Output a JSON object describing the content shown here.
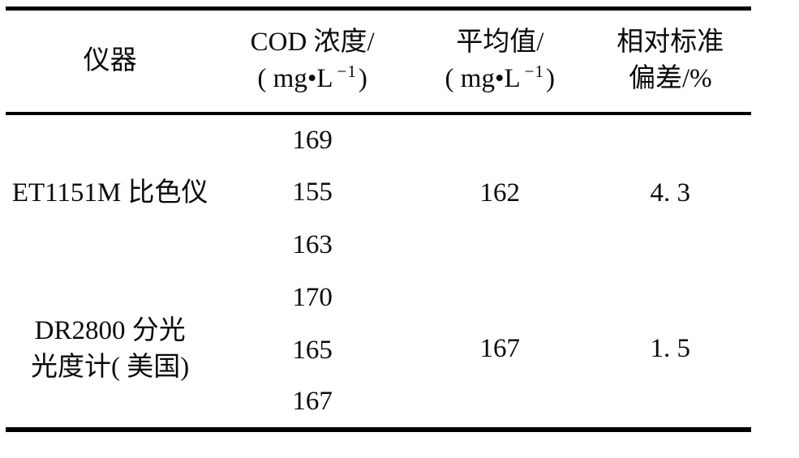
{
  "page": {
    "background_color": "#ffffff",
    "text_color": "#0a0a0a",
    "rule_color": "#000000"
  },
  "table": {
    "header": {
      "instrument": "仪器",
      "cod": {
        "title": "COD 浓度/",
        "unit_pre": "( mg•L",
        "unit_sup": "−1",
        "unit_post": ")"
      },
      "avg": {
        "title": "平均值/",
        "unit_pre": "( mg•L",
        "unit_sup": "−1",
        "unit_post": ")"
      },
      "rsd": {
        "line1": "相对标准",
        "line2": "偏差/%"
      }
    },
    "rows": [
      {
        "instrument_lines": [
          "ET1151M 比色仪"
        ],
        "cod_values": [
          "169",
          "155",
          "163"
        ],
        "average": "162",
        "rsd": "4. 3"
      },
      {
        "instrument_lines": [
          "DR2800 分光",
          "光度计( 美国)"
        ],
        "cod_values": [
          "170",
          "165",
          "167"
        ],
        "average": "167",
        "rsd": "1. 5"
      }
    ]
  },
  "chart_data": {
    "type": "table",
    "title": "",
    "columns": [
      "仪器",
      "COD 浓度/( mg•L−1)",
      "平均值/( mg•L−1)",
      "相对标准偏差/%"
    ],
    "rows": [
      {
        "instrument": "ET1151M 比色仪",
        "cod_values": [
          169,
          155,
          163
        ],
        "average": 162,
        "rsd_percent": 4.3
      },
      {
        "instrument": "DR2800 分光光度计( 美国)",
        "cod_values": [
          170,
          165,
          167
        ],
        "average": 167,
        "rsd_percent": 1.5
      }
    ]
  }
}
